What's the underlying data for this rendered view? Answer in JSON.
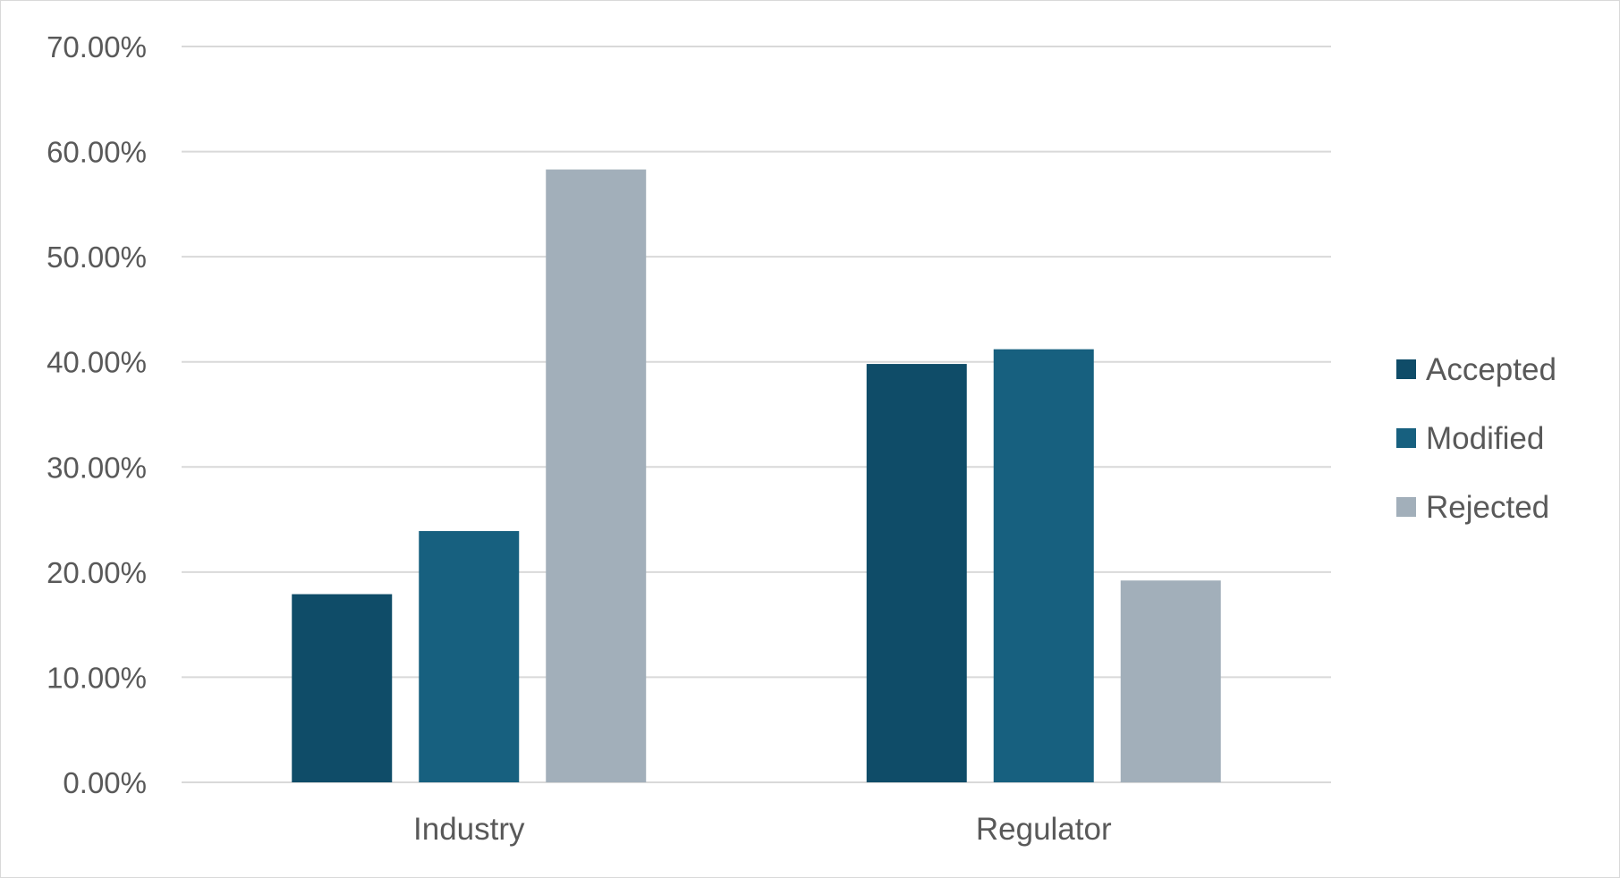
{
  "chart_data": {
    "type": "bar",
    "title": "",
    "xlabel": "",
    "ylabel": "",
    "categories": [
      "Industry",
      "Regulator"
    ],
    "series": [
      {
        "name": "Accepted",
        "color": "#0f4c68",
        "values": [
          0.179,
          0.398
        ]
      },
      {
        "name": "Modified",
        "color": "#17607f",
        "values": [
          0.239,
          0.412
        ]
      },
      {
        "name": "Rejected",
        "color": "#a2afba",
        "values": [
          0.583,
          0.192
        ]
      }
    ],
    "ylim": [
      0,
      0.7
    ],
    "yticks": [
      0,
      0.1,
      0.2,
      0.3,
      0.4,
      0.5,
      0.6,
      0.7
    ],
    "ytick_labels": [
      "0.00%",
      "10.00%",
      "20.00%",
      "30.00%",
      "40.00%",
      "50.00%",
      "60.00%",
      "70.00%"
    ],
    "grid": true,
    "gridline_color": "#d9d9d9",
    "legend_position": "right"
  }
}
